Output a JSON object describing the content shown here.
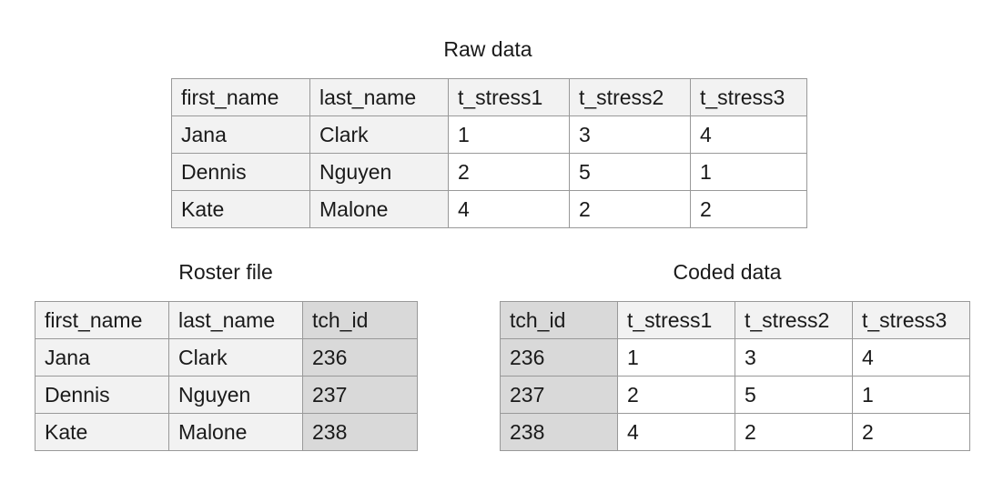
{
  "raw": {
    "title": "Raw data",
    "headers": [
      "first_name",
      "last_name",
      "t_stress1",
      "t_stress2",
      "t_stress3"
    ],
    "rows": [
      [
        "Jana",
        "Clark",
        "1",
        "3",
        "4"
      ],
      [
        "Dennis",
        "Nguyen",
        "2",
        "5",
        "1"
      ],
      [
        "Kate",
        "Malone",
        "4",
        "2",
        "2"
      ]
    ]
  },
  "roster": {
    "title": "Roster file",
    "headers": [
      "first_name",
      "last_name",
      "tch_id"
    ],
    "rows": [
      [
        "Jana",
        "Clark",
        "236"
      ],
      [
        "Dennis",
        "Nguyen",
        "237"
      ],
      [
        "Kate",
        "Malone",
        "238"
      ]
    ]
  },
  "coded": {
    "title": "Coded data",
    "headers": [
      "tch_id",
      "t_stress1",
      "t_stress2",
      "t_stress3"
    ],
    "rows": [
      [
        "236",
        "1",
        "3",
        "4"
      ],
      [
        "237",
        "2",
        "5",
        "1"
      ],
      [
        "238",
        "4",
        "2",
        "2"
      ]
    ]
  },
  "colors": {
    "light_fill": "#f2f2f2",
    "id_fill": "#d9d9d9",
    "border": "#999999"
  }
}
